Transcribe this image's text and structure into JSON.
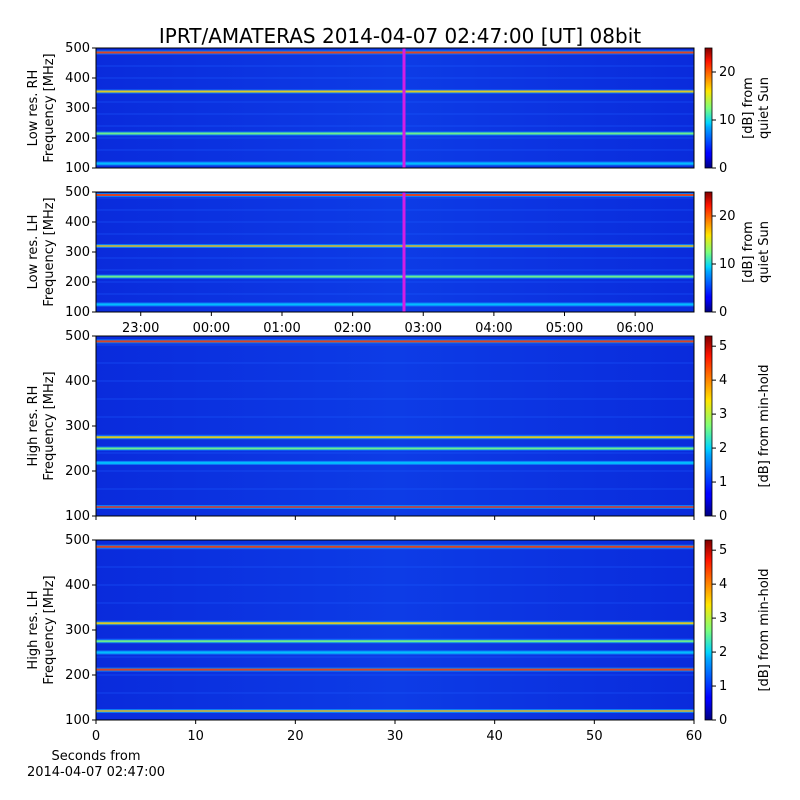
{
  "title": "IPRT/AMATERAS 2014-04-07 02:47:00 [UT]   08bit",
  "colors": {
    "cursor_line": "#d21ee6",
    "colormap": "jet",
    "background": "#0a1fd8"
  },
  "chart_data": [
    {
      "type": "heatmap",
      "name": "low-res-rh",
      "ylabel": [
        "Low res. RH",
        "Frequency [MHz]"
      ],
      "yticks": [
        "100",
        "200",
        "300",
        "400",
        "500"
      ],
      "ylim": [
        100,
        500
      ],
      "x_tick_labels": [
        "23:00",
        "00:00",
        "01:00",
        "02:00",
        "03:00",
        "04:00",
        "05:00",
        "06:00"
      ],
      "cursor_time": "02:47",
      "colorbar": {
        "ticks": [
          "0",
          "10",
          "20"
        ],
        "range": [
          0,
          25
        ],
        "label": [
          "[dB] from",
          "quiet Sun"
        ]
      },
      "bright_bands_mhz": [
        485,
        355,
        215,
        115
      ]
    },
    {
      "type": "heatmap",
      "name": "low-res-lh",
      "ylabel": [
        "Low res. LH",
        "Frequency [MHz]"
      ],
      "yticks": [
        "100",
        "200",
        "300",
        "400",
        "500"
      ],
      "ylim": [
        100,
        500
      ],
      "x_tick_labels": [
        "23:00",
        "00:00",
        "01:00",
        "02:00",
        "03:00",
        "04:00",
        "05:00",
        "06:00"
      ],
      "cursor_time": "02:47",
      "colorbar": {
        "ticks": [
          "0",
          "10",
          "20"
        ],
        "range": [
          0,
          25
        ],
        "label": [
          "[dB] from",
          "quiet Sun"
        ]
      },
      "bright_bands_mhz": [
        490,
        320,
        218,
        125
      ]
    },
    {
      "type": "heatmap",
      "name": "high-res-rh",
      "ylabel": [
        "High res. RH",
        "Frequency [MHz]"
      ],
      "yticks": [
        "100",
        "200",
        "300",
        "400",
        "500"
      ],
      "ylim": [
        100,
        500
      ],
      "xlim": [
        0,
        60
      ],
      "colorbar": {
        "ticks": [
          "0",
          "1",
          "2",
          "3",
          "4",
          "5"
        ],
        "range": [
          0,
          5.3
        ],
        "label": [
          "[dB] from min-hold"
        ]
      },
      "bright_bands_mhz": [
        488,
        275,
        250,
        218,
        120
      ]
    },
    {
      "type": "heatmap",
      "name": "high-res-lh",
      "ylabel": [
        "High res. LH",
        "Frequency [MHz]"
      ],
      "yticks": [
        "100",
        "200",
        "300",
        "400",
        "500"
      ],
      "ylim": [
        100,
        500
      ],
      "xlim": [
        0,
        60
      ],
      "x_tick_labels": [
        "0",
        "10",
        "20",
        "30",
        "40",
        "50",
        "60"
      ],
      "xlabel": [
        "Seconds from",
        "2014-04-07 02:47:00"
      ],
      "colorbar": {
        "ticks": [
          "0",
          "1",
          "2",
          "3",
          "4",
          "5"
        ],
        "range": [
          0,
          5.3
        ],
        "label": [
          "[dB] from min-hold"
        ]
      },
      "bright_bands_mhz": [
        485,
        315,
        275,
        250,
        212,
        120
      ]
    }
  ]
}
